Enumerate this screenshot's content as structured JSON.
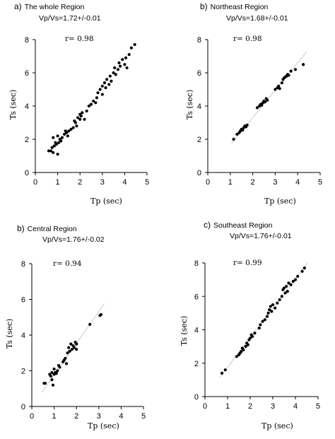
{
  "chart_data": [
    {
      "type": "scatter",
      "panel_label": "a)",
      "title": "The whole Region",
      "subtitle": "Vp/Vs=1.72+/-0.01",
      "r_label": "r= 0.98",
      "xlabel": "Tp (sec)",
      "ylabel": "Ts (sec)",
      "xlim": [
        0,
        5
      ],
      "ylim": [
        0,
        8
      ],
      "xticks": [
        "0",
        "1",
        "2",
        "3",
        "4",
        "5"
      ],
      "yticks": [
        "0",
        "2",
        "4",
        "6",
        "8"
      ],
      "fit_line": false,
      "points": [
        [
          0.6,
          1.3
        ],
        [
          0.7,
          1.3
        ],
        [
          0.75,
          1.5
        ],
        [
          0.8,
          1.2
        ],
        [
          0.8,
          2.1
        ],
        [
          0.85,
          1.6
        ],
        [
          0.9,
          1.8
        ],
        [
          0.95,
          1.7
        ],
        [
          1.0,
          1.1
        ],
        [
          1.0,
          2.2
        ],
        [
          1.05,
          1.8
        ],
        [
          1.1,
          2.0
        ],
        [
          1.15,
          1.9
        ],
        [
          1.2,
          2.1
        ],
        [
          1.3,
          2.3
        ],
        [
          1.35,
          2.5
        ],
        [
          1.4,
          2.4
        ],
        [
          1.45,
          2.2
        ],
        [
          1.5,
          2.5
        ],
        [
          1.6,
          2.6
        ],
        [
          1.7,
          2.7
        ],
        [
          1.75,
          3.1
        ],
        [
          1.8,
          3.0
        ],
        [
          1.85,
          2.8
        ],
        [
          1.9,
          3.3
        ],
        [
          2.0,
          3.2
        ],
        [
          2.0,
          3.5
        ],
        [
          2.05,
          3.4
        ],
        [
          2.1,
          3.6
        ],
        [
          2.2,
          3.2
        ],
        [
          2.3,
          3.7
        ],
        [
          2.4,
          4.0
        ],
        [
          2.5,
          4.1
        ],
        [
          2.6,
          4.3
        ],
        [
          2.7,
          4.2
        ],
        [
          2.75,
          4.5
        ],
        [
          2.8,
          4.8
        ],
        [
          2.9,
          5.0
        ],
        [
          3.0,
          5.2
        ],
        [
          3.0,
          4.7
        ],
        [
          3.1,
          5.4
        ],
        [
          3.15,
          5.1
        ],
        [
          3.2,
          5.6
        ],
        [
          3.3,
          5.3
        ],
        [
          3.35,
          5.8
        ],
        [
          3.4,
          5.5
        ],
        [
          3.5,
          6.0
        ],
        [
          3.55,
          6.3
        ],
        [
          3.6,
          5.9
        ],
        [
          3.7,
          6.2
        ],
        [
          3.75,
          6.6
        ],
        [
          3.8,
          6.4
        ],
        [
          3.9,
          6.8
        ],
        [
          4.0,
          6.5
        ],
        [
          4.05,
          6.9
        ],
        [
          4.1,
          6.3
        ],
        [
          4.2,
          7.1
        ],
        [
          4.3,
          7.5
        ],
        [
          4.45,
          7.7
        ]
      ]
    },
    {
      "type": "scatter",
      "panel_label": "b)",
      "title": "Northeast Region",
      "subtitle": "Vp/Vs=1.68+/-0.01",
      "r_label": "r= 0.98",
      "xlabel": "Tp (sec)",
      "ylabel": "Ts (sec)",
      "xlim": [
        0,
        5
      ],
      "ylim": [
        0,
        8
      ],
      "xticks": [
        "0",
        "1",
        "2",
        "3",
        "4",
        "5"
      ],
      "yticks": [
        "0",
        "2",
        "4",
        "6",
        "8"
      ],
      "fit_line": true,
      "points": [
        [
          1.15,
          2.0
        ],
        [
          1.3,
          2.3
        ],
        [
          1.4,
          2.4
        ],
        [
          1.45,
          2.5
        ],
        [
          1.5,
          2.6
        ],
        [
          1.55,
          2.55
        ],
        [
          1.6,
          2.7
        ],
        [
          1.65,
          2.8
        ],
        [
          1.7,
          2.75
        ],
        [
          1.75,
          2.85
        ],
        [
          2.2,
          3.9
        ],
        [
          2.3,
          4.0
        ],
        [
          2.35,
          4.1
        ],
        [
          2.4,
          4.05
        ],
        [
          2.45,
          4.2
        ],
        [
          2.5,
          4.3
        ],
        [
          2.55,
          4.25
        ],
        [
          2.6,
          4.45
        ],
        [
          2.65,
          4.35
        ],
        [
          3.0,
          5.0
        ],
        [
          3.1,
          5.1
        ],
        [
          3.15,
          5.2
        ],
        [
          3.2,
          5.05
        ],
        [
          3.3,
          5.4
        ],
        [
          3.35,
          5.6
        ],
        [
          3.4,
          5.7
        ],
        [
          3.45,
          5.75
        ],
        [
          3.5,
          5.8
        ],
        [
          3.55,
          5.9
        ],
        [
          3.6,
          5.85
        ],
        [
          3.7,
          6.1
        ],
        [
          3.9,
          6.2
        ],
        [
          4.25,
          6.5
        ]
      ]
    },
    {
      "type": "scatter",
      "panel_label": "b)",
      "title": "Central Region",
      "subtitle": "Vp/Vs=1.76+/-0.02",
      "r_label": "r= 0.94",
      "xlabel": "Tp (sec)",
      "ylabel": "Ts (sec)",
      "xlim": [
        0,
        5
      ],
      "ylim": [
        0,
        8
      ],
      "xticks": [
        "0",
        "1",
        "2",
        "3",
        "4",
        "5"
      ],
      "yticks": [
        "0",
        "2",
        "4",
        "6",
        "8"
      ],
      "fit_line": true,
      "points": [
        [
          0.55,
          1.3
        ],
        [
          0.6,
          1.3
        ],
        [
          0.8,
          1.8
        ],
        [
          0.85,
          1.7
        ],
        [
          0.9,
          1.5
        ],
        [
          0.9,
          1.9
        ],
        [
          0.95,
          1.2
        ],
        [
          1.0,
          1.8
        ],
        [
          1.0,
          2.1
        ],
        [
          1.05,
          1.9
        ],
        [
          1.1,
          1.85
        ],
        [
          1.15,
          2.0
        ],
        [
          1.2,
          2.3
        ],
        [
          1.25,
          2.2
        ],
        [
          1.4,
          2.5
        ],
        [
          1.45,
          2.6
        ],
        [
          1.5,
          2.7
        ],
        [
          1.55,
          2.4
        ],
        [
          1.6,
          3.0
        ],
        [
          1.65,
          3.3
        ],
        [
          1.7,
          3.1
        ],
        [
          1.75,
          3.5
        ],
        [
          1.8,
          3.2
        ],
        [
          1.85,
          3.4
        ],
        [
          1.9,
          3.3
        ],
        [
          1.95,
          3.6
        ],
        [
          2.0,
          3.2
        ],
        [
          2.0,
          3.5
        ],
        [
          2.6,
          4.6
        ],
        [
          3.05,
          5.1
        ],
        [
          3.1,
          5.15
        ]
      ]
    },
    {
      "type": "scatter",
      "panel_label": "c)",
      "title": "Southeast Region",
      "subtitle": "Vp/Vs=1.76+/-0.01",
      "r_label": "r= 0.99",
      "xlabel": "Tp (sec)",
      "ylabel": "Ts (sec)",
      "xlim": [
        0,
        5
      ],
      "ylim": [
        0,
        8
      ],
      "xticks": [
        "0",
        "1",
        "2",
        "3",
        "4",
        "5"
      ],
      "yticks": [
        "0",
        "2",
        "4",
        "6",
        "8"
      ],
      "fit_line": true,
      "points": [
        [
          0.75,
          1.4
        ],
        [
          0.9,
          1.6
        ],
        [
          1.4,
          2.4
        ],
        [
          1.5,
          2.5
        ],
        [
          1.55,
          2.6
        ],
        [
          1.6,
          2.7
        ],
        [
          1.65,
          2.9
        ],
        [
          1.7,
          2.8
        ],
        [
          1.8,
          3.0
        ],
        [
          1.85,
          3.2
        ],
        [
          1.9,
          3.1
        ],
        [
          1.95,
          3.4
        ],
        [
          2.0,
          3.5
        ],
        [
          2.05,
          3.7
        ],
        [
          2.1,
          3.6
        ],
        [
          2.2,
          3.8
        ],
        [
          2.4,
          4.1
        ],
        [
          2.45,
          4.3
        ],
        [
          2.55,
          4.5
        ],
        [
          2.65,
          4.6
        ],
        [
          2.75,
          4.8
        ],
        [
          2.8,
          5.0
        ],
        [
          2.85,
          5.2
        ],
        [
          2.9,
          5.4
        ],
        [
          2.95,
          5.1
        ],
        [
          3.0,
          5.5
        ],
        [
          3.1,
          5.3
        ],
        [
          3.2,
          5.6
        ],
        [
          3.3,
          5.8
        ],
        [
          3.4,
          6.0
        ],
        [
          3.45,
          6.4
        ],
        [
          3.5,
          6.5
        ],
        [
          3.55,
          6.2
        ],
        [
          3.6,
          6.6
        ],
        [
          3.65,
          6.3
        ],
        [
          3.7,
          6.8
        ],
        [
          3.8,
          6.7
        ],
        [
          3.9,
          6.9
        ],
        [
          4.0,
          7.0
        ],
        [
          4.1,
          7.2
        ],
        [
          4.3,
          7.5
        ],
        [
          4.4,
          7.7
        ]
      ]
    }
  ]
}
